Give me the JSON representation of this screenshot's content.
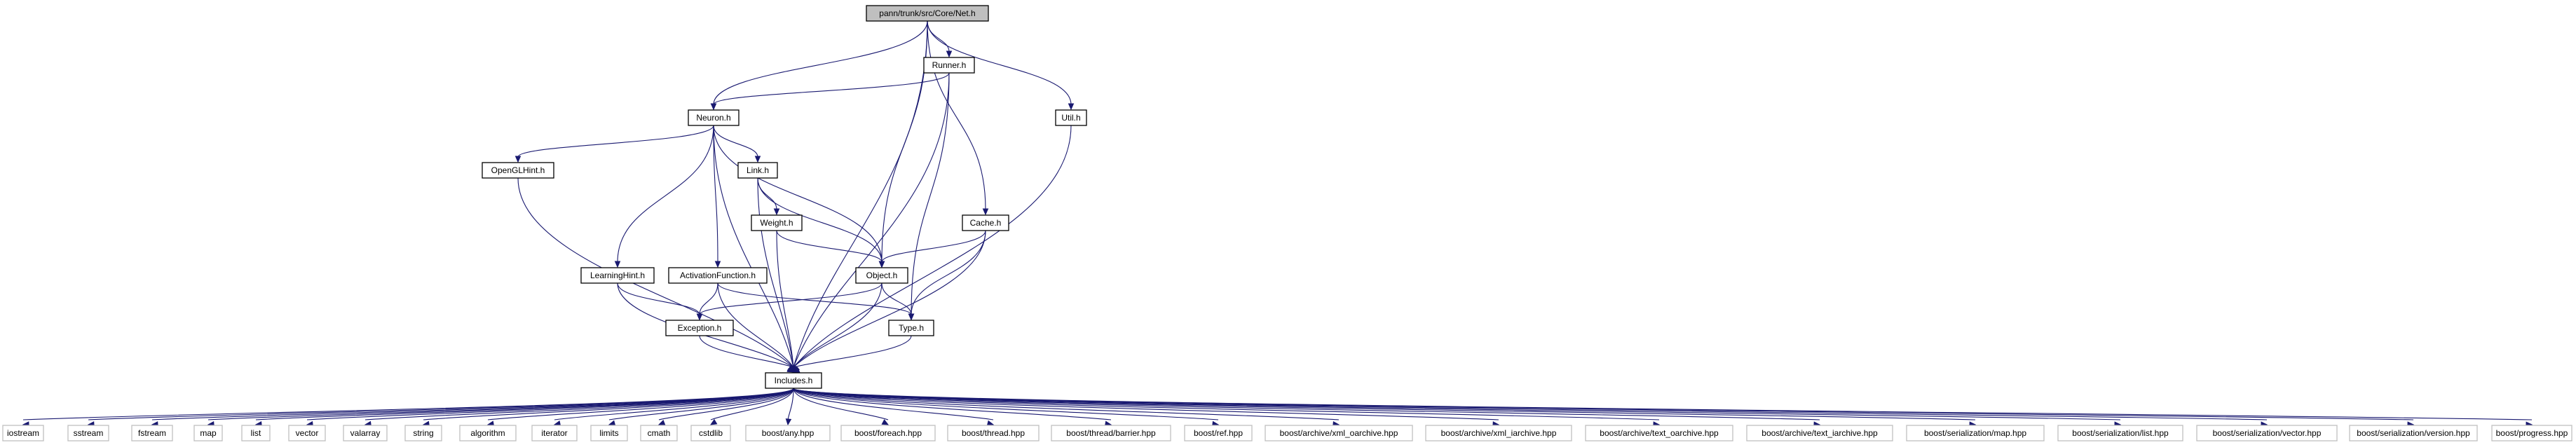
{
  "diagram": {
    "edge_color": "#191970",
    "root_fill": "#bfbfbf",
    "leaf_border": "#bfbfbf",
    "nodes": [
      {
        "id": "net",
        "label": "pann/trunk/src/Core/Net.h"
      },
      {
        "id": "runner",
        "label": "Runner.h"
      },
      {
        "id": "neuron",
        "label": "Neuron.h"
      },
      {
        "id": "util",
        "label": "Util.h"
      },
      {
        "id": "openglhint",
        "label": "OpenGLHint.h"
      },
      {
        "id": "link",
        "label": "Link.h"
      },
      {
        "id": "weight",
        "label": "Weight.h"
      },
      {
        "id": "cache",
        "label": "Cache.h"
      },
      {
        "id": "learninghint",
        "label": "LearningHint.h"
      },
      {
        "id": "activation",
        "label": "ActivationFunction.h"
      },
      {
        "id": "object",
        "label": "Object.h"
      },
      {
        "id": "exception",
        "label": "Exception.h"
      },
      {
        "id": "type",
        "label": "Type.h"
      },
      {
        "id": "includes",
        "label": "Includes.h"
      },
      {
        "id": "iostream",
        "label": "iostream"
      },
      {
        "id": "sstream",
        "label": "sstream"
      },
      {
        "id": "fstream",
        "label": "fstream"
      },
      {
        "id": "map",
        "label": "map"
      },
      {
        "id": "list",
        "label": "list"
      },
      {
        "id": "vector",
        "label": "vector"
      },
      {
        "id": "valarray",
        "label": "valarray"
      },
      {
        "id": "string",
        "label": "string"
      },
      {
        "id": "algorithm",
        "label": "algorithm"
      },
      {
        "id": "iterator",
        "label": "iterator"
      },
      {
        "id": "limits",
        "label": "limits"
      },
      {
        "id": "cmath",
        "label": "cmath"
      },
      {
        "id": "cstdlib",
        "label": "cstdlib"
      },
      {
        "id": "any",
        "label": "boost/any.hpp"
      },
      {
        "id": "foreach",
        "label": "boost/foreach.hpp"
      },
      {
        "id": "thread",
        "label": "boost/thread.hpp"
      },
      {
        "id": "barrier",
        "label": "boost/thread/barrier.hpp"
      },
      {
        "id": "ref",
        "label": "boost/ref.hpp"
      },
      {
        "id": "xml_oarchive",
        "label": "boost/archive/xml_oarchive.hpp"
      },
      {
        "id": "xml_iarchive",
        "label": "boost/archive/xml_iarchive.hpp"
      },
      {
        "id": "text_oarchive",
        "label": "boost/archive/text_oarchive.hpp"
      },
      {
        "id": "text_iarchive",
        "label": "boost/archive/text_iarchive.hpp"
      },
      {
        "id": "ser_map",
        "label": "boost/serialization/map.hpp"
      },
      {
        "id": "ser_list",
        "label": "boost/serialization/list.hpp"
      },
      {
        "id": "ser_vector",
        "label": "boost/serialization/vector.hpp"
      },
      {
        "id": "ser_version",
        "label": "boost/serialization/version.hpp"
      },
      {
        "id": "progress",
        "label": "boost/progress.hpp"
      }
    ],
    "edges": [
      [
        "net",
        "runner"
      ],
      [
        "net",
        "neuron"
      ],
      [
        "net",
        "util"
      ],
      [
        "net",
        "cache"
      ],
      [
        "net",
        "object"
      ],
      [
        "net",
        "includes"
      ],
      [
        "runner",
        "neuron"
      ],
      [
        "runner",
        "type"
      ],
      [
        "runner",
        "includes"
      ],
      [
        "neuron",
        "openglhint"
      ],
      [
        "neuron",
        "link"
      ],
      [
        "neuron",
        "learninghint"
      ],
      [
        "neuron",
        "activation"
      ],
      [
        "neuron",
        "object"
      ],
      [
        "neuron",
        "includes"
      ],
      [
        "util",
        "includes"
      ],
      [
        "openglhint",
        "includes"
      ],
      [
        "link",
        "weight"
      ],
      [
        "link",
        "object"
      ],
      [
        "link",
        "includes"
      ],
      [
        "weight",
        "object"
      ],
      [
        "weight",
        "includes"
      ],
      [
        "cache",
        "object"
      ],
      [
        "cache",
        "type"
      ],
      [
        "cache",
        "includes"
      ],
      [
        "learninghint",
        "exception"
      ],
      [
        "learninghint",
        "includes"
      ],
      [
        "activation",
        "exception"
      ],
      [
        "activation",
        "type"
      ],
      [
        "activation",
        "includes"
      ],
      [
        "object",
        "exception"
      ],
      [
        "object",
        "type"
      ],
      [
        "object",
        "includes"
      ],
      [
        "exception",
        "includes"
      ],
      [
        "type",
        "includes"
      ],
      [
        "includes",
        "iostream"
      ],
      [
        "includes",
        "sstream"
      ],
      [
        "includes",
        "fstream"
      ],
      [
        "includes",
        "map"
      ],
      [
        "includes",
        "list"
      ],
      [
        "includes",
        "vector"
      ],
      [
        "includes",
        "valarray"
      ],
      [
        "includes",
        "string"
      ],
      [
        "includes",
        "algorithm"
      ],
      [
        "includes",
        "iterator"
      ],
      [
        "includes",
        "limits"
      ],
      [
        "includes",
        "cmath"
      ],
      [
        "includes",
        "cstdlib"
      ],
      [
        "includes",
        "any"
      ],
      [
        "includes",
        "foreach"
      ],
      [
        "includes",
        "thread"
      ],
      [
        "includes",
        "barrier"
      ],
      [
        "includes",
        "ref"
      ],
      [
        "includes",
        "xml_oarchive"
      ],
      [
        "includes",
        "xml_iarchive"
      ],
      [
        "includes",
        "text_oarchive"
      ],
      [
        "includes",
        "text_iarchive"
      ],
      [
        "includes",
        "ser_map"
      ],
      [
        "includes",
        "ser_list"
      ],
      [
        "includes",
        "ser_vector"
      ],
      [
        "includes",
        "ser_version"
      ],
      [
        "includes",
        "progress"
      ]
    ]
  }
}
